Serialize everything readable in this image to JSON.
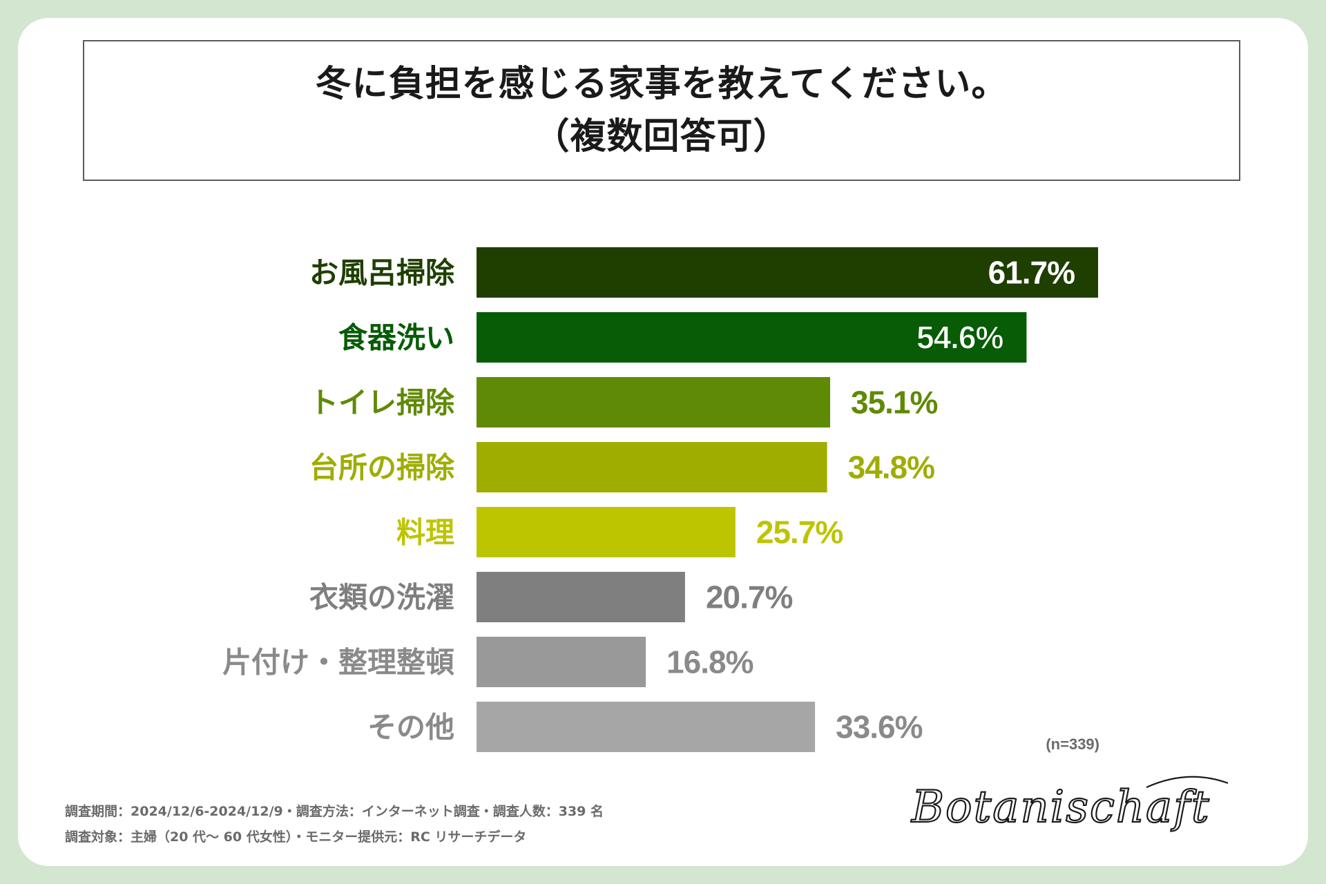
{
  "chart_data": {
    "type": "bar",
    "orientation": "horizontal",
    "title": "冬に負担を感じる家事を教えてください。",
    "subtitle": "（複数回答可）",
    "categories": [
      "お風呂掃除",
      "食器洗い",
      "トイレ掃除",
      "台所の掃除",
      "料理",
      "衣類の洗濯",
      "片付け・整理整頓",
      "その他"
    ],
    "values": [
      61.7,
      54.6,
      35.1,
      34.8,
      25.7,
      20.7,
      16.8,
      33.6
    ],
    "value_labels": [
      "61.7%",
      "54.6%",
      "35.1%",
      "34.8%",
      "25.7%",
      "20.7%",
      "16.8%",
      "33.6%"
    ],
    "bar_colors": [
      "#1f3f00",
      "#075c05",
      "#5f8a05",
      "#9fad00",
      "#bdc400",
      "#7f7f7f",
      "#999999",
      "#a6a6a6"
    ],
    "label_colors": [
      "#1f3f00",
      "#075c05",
      "#5f8a05",
      "#9fad00",
      "#bdc400",
      "#7f7f7f",
      "#8a8a8a",
      "#8a8a8a"
    ],
    "value_inside": [
      true,
      true,
      false,
      false,
      false,
      false,
      false,
      false
    ],
    "xlim": [
      0,
      61.7
    ],
    "sample_size": "(n=339)",
    "grid": false,
    "legend": "none"
  },
  "footer": {
    "line1": "調査期間：2024/12/6-2024/12/9・調査方法：インターネット調査・調査人数：339 名",
    "line2": "調査対象：主婦（20 代～ 60 代女性）・モニター提供元：RC リサーチデータ"
  },
  "brand": {
    "logo_text": "Botanischaft",
    "background_color": "#d3e6cf",
    "card_color": "#ffffff"
  }
}
